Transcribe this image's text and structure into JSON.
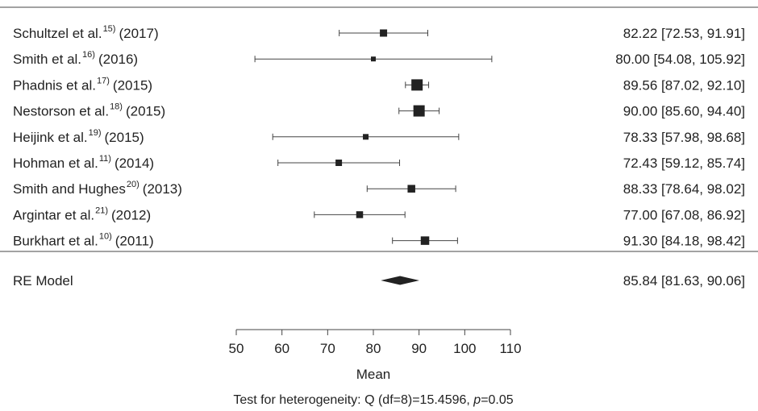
{
  "chart_data": {
    "type": "forest",
    "xlabel": "Mean",
    "xlim": [
      50,
      110
    ],
    "xticks": [
      "50",
      "60",
      "70",
      "80",
      "90",
      "100",
      "110"
    ],
    "studies": [
      {
        "author": "Schultzel et al.",
        "ref": "15)",
        "year": "(2017)",
        "mean": 82.22,
        "lower": 72.53,
        "upper": 91.91,
        "ci_text": "82.22 [72.53, 91.91]",
        "weight": 0.5
      },
      {
        "author": "Smith et al.",
        "ref": "16)",
        "year": "(2016)",
        "mean": 80.0,
        "lower": 54.08,
        "upper": 105.92,
        "ci_text": "80.00 [54.08, 105.92]",
        "weight": 0.2
      },
      {
        "author": "Phadnis et al.",
        "ref": "17)",
        "year": "(2015)",
        "mean": 89.56,
        "lower": 87.02,
        "upper": 92.1,
        "ci_text": "89.56 [87.02, 92.10]",
        "weight": 1.0
      },
      {
        "author": "Nestorson et al.",
        "ref": "18)",
        "year": "(2015)",
        "mean": 90.0,
        "lower": 85.6,
        "upper": 94.4,
        "ci_text": "90.00 [85.60, 94.40]",
        "weight": 1.0
      },
      {
        "author": "Heijink et al.",
        "ref": "19)",
        "year": "(2015)",
        "mean": 78.33,
        "lower": 57.98,
        "upper": 98.68,
        "ci_text": "78.33 [57.98, 98.68]",
        "weight": 0.3
      },
      {
        "author": "Hohman et al.",
        "ref": "11)",
        "year": "(2014)",
        "mean": 72.43,
        "lower": 59.12,
        "upper": 85.74,
        "ci_text": "72.43 [59.12, 85.74]",
        "weight": 0.4
      },
      {
        "author": "Smith and Hughes",
        "ref": "20)",
        "year": "(2013)",
        "mean": 88.33,
        "lower": 78.64,
        "upper": 98.02,
        "ci_text": "88.33 [78.64, 98.02]",
        "weight": 0.55
      },
      {
        "author": "Argintar et al.",
        "ref": "21)",
        "year": "(2012)",
        "mean": 77.0,
        "lower": 67.08,
        "upper": 86.92,
        "ci_text": "77.00 [67.08, 86.92]",
        "weight": 0.45
      },
      {
        "author": "Burkhart et al.",
        "ref": "10)",
        "year": "(2011)",
        "mean": 91.3,
        "lower": 84.18,
        "upper": 98.42,
        "ci_text": "91.30 [84.18, 98.42]",
        "weight": 0.65
      }
    ],
    "summary": {
      "label": "RE Model",
      "mean": 85.84,
      "lower": 81.63,
      "upper": 90.06,
      "ci_text": "85.84 [81.63, 90.06]"
    },
    "heterogeneity": {
      "prefix": "Test for heterogeneity: Q (df=8)=15.4596, ",
      "p_symbol": "p",
      "p_suffix": "=0.05"
    },
    "colors": {
      "ink": "#222222",
      "line": "#444444"
    }
  }
}
